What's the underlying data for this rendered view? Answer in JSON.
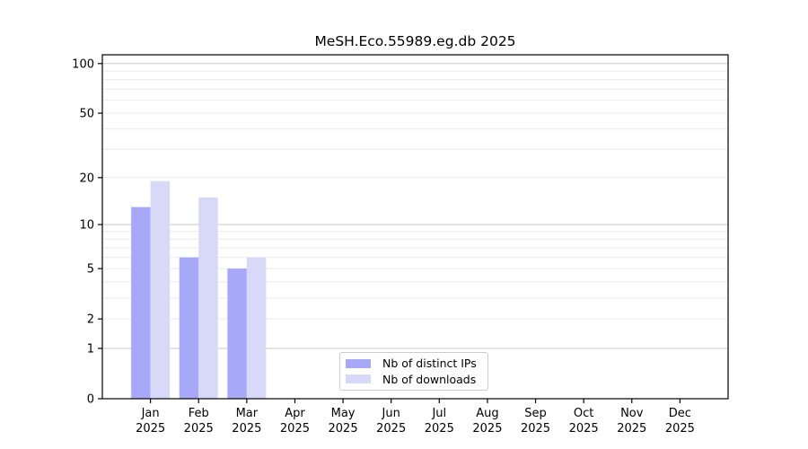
{
  "title": "MeSH.Eco.55989.eg.db 2025",
  "chart_data": {
    "type": "bar",
    "title": "MeSH.Eco.55989.eg.db 2025",
    "categories": [
      "Jan",
      "Feb",
      "Mar",
      "Apr",
      "May",
      "Jun",
      "Jul",
      "Aug",
      "Sep",
      "Oct",
      "Nov",
      "Dec"
    ],
    "category_sublabel": "2025",
    "series": [
      {
        "name": "Nb of distinct IPs",
        "color": "#a8a8f8",
        "values": [
          13,
          6,
          5,
          0,
          0,
          0,
          0,
          0,
          0,
          0,
          0,
          0
        ]
      },
      {
        "name": "Nb of downloads",
        "color": "#d8d8f8",
        "values": [
          19,
          15,
          6,
          0,
          0,
          0,
          0,
          0,
          0,
          0,
          0,
          0
        ]
      }
    ],
    "xlabel": "",
    "ylabel": "",
    "yscale": "log1p",
    "yticks": [
      0,
      1,
      2,
      5,
      10,
      20,
      50,
      100
    ],
    "ylim": [
      0,
      113
    ],
    "grid": {
      "on": true,
      "major_values": [
        1,
        10,
        100
      ],
      "minor_values": [
        2,
        3,
        4,
        5,
        6,
        7,
        8,
        9,
        20,
        30,
        40,
        50,
        60,
        70,
        80,
        90
      ],
      "major_color": "#c8c8c8",
      "minor_color": "#ebebeb"
    },
    "legend_position": "lower-center-inside",
    "axis_color": "#000000",
    "background_color": "#ffffff"
  }
}
